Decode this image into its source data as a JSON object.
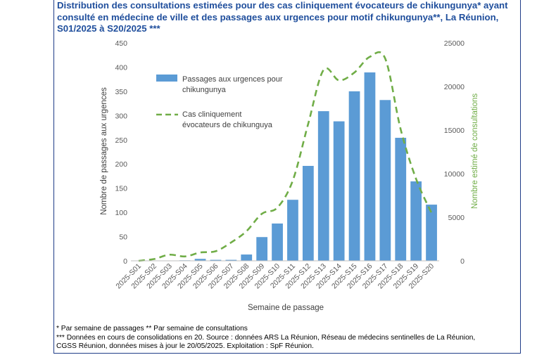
{
  "title": "Distribution des consultations estimées pour des cas cliniquement évocateurs de chikungunya* ayant consulté en médecine de ville et des passages aux urgences pour motif chikungunya**, La Réunion, S01/2025 à S20/2025 ***",
  "chart_data": {
    "type": "bar",
    "categories": [
      "2025-S01",
      "2025-S02",
      "2025-S03",
      "2025-S04",
      "2025-S05",
      "2025-S06",
      "2025-S07",
      "2025-S08",
      "2025-S09",
      "2025-S10",
      "2025-S11",
      "2025-S12",
      "2025-S13",
      "2025-S14",
      "2025-S15",
      "2025-S16",
      "2025-S17",
      "2025-S18",
      "2025-S19",
      "2025-S20"
    ],
    "xlabel": "Semaine de passage",
    "ylabel": "Nombre de passages aux urgences",
    "y2label": "Nombre estimé de consultations",
    "ylim": [
      0,
      450
    ],
    "y2lim": [
      0,
      25000
    ],
    "yticks": [
      "0",
      "50",
      "100",
      "150",
      "200",
      "250",
      "300",
      "350",
      "400",
      "450"
    ],
    "y2ticks": [
      "0",
      "5000",
      "10000",
      "15000",
      "20000",
      "25000"
    ],
    "grid": false,
    "legend_position": "top-left",
    "series": [
      {
        "name": "Passages aux urgences pour chikungunya",
        "legend_lines": [
          "Passages aux urgences pour",
          "chikungunya"
        ],
        "type": "bar",
        "axis": "left",
        "color": "#5b9bd5",
        "values": [
          0,
          0,
          0,
          1,
          4,
          2,
          2,
          13,
          49,
          77,
          126,
          196,
          309,
          288,
          350,
          389,
          332,
          254,
          164,
          116
        ]
      },
      {
        "name": "Cas cliniquement évocateurs de chikunguya",
        "legend_lines": [
          "Cas cliniquement",
          "évocateurs de chikunguya"
        ],
        "type": "line",
        "style": "dashed",
        "axis": "right",
        "color": "#70ad47",
        "values": [
          0,
          200,
          700,
          500,
          950,
          1100,
          2100,
          3400,
          5400,
          6100,
          9200,
          15700,
          21900,
          20700,
          21600,
          23400,
          23200,
          15100,
          9400,
          5500
        ]
      }
    ]
  },
  "footnotes": [
    "* Par semaine de passages     ** Par semaine de consultations",
    "*** Données en cours de consolidations en 20. Source : données ARS La Réunion, Réseau de médecins sentinelles de La Réunion,",
    "CGSS Réunion, données mises à jour le 20/05/2025. Exploitation :  SpF Réunion."
  ]
}
